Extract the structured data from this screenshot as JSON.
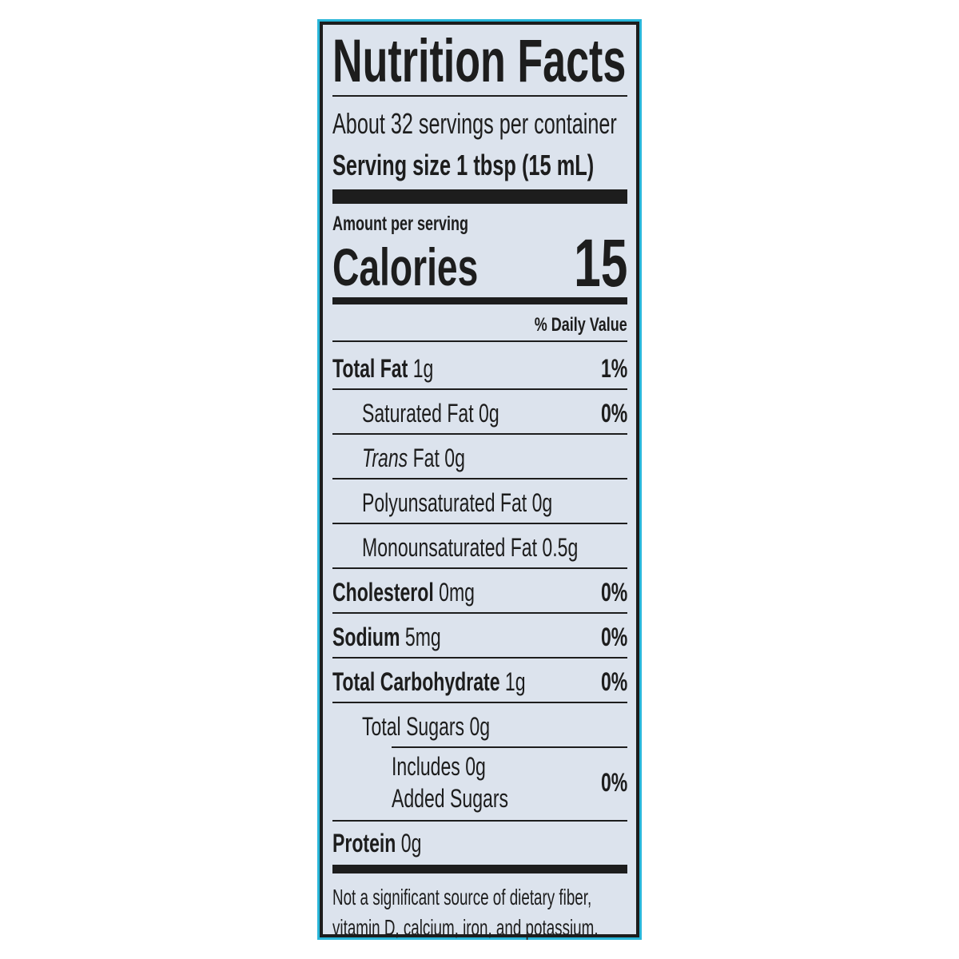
{
  "title": "Nutrition Facts",
  "servings": "About 32 servings per container",
  "serving_size": "Serving size 1 tbsp (15 mL)",
  "amount_per_serving": "Amount per serving",
  "calories_label": "Calories",
  "calories_value": "15",
  "daily_value_header": "% Daily Value",
  "nutrients": [
    {
      "name": "Total Fat",
      "amount": "1g",
      "dv": "1%",
      "indent": 0,
      "bold": true
    },
    {
      "name": "Saturated Fat",
      "amount": "0g",
      "dv": "0%",
      "indent": 1,
      "bold": false
    },
    {
      "name": "Trans",
      "name_suffix": "Fat",
      "amount": "0g",
      "dv": "",
      "indent": 1,
      "bold": false,
      "italic": true
    },
    {
      "name": "Polyunsaturated Fat",
      "amount": "0g",
      "dv": "",
      "indent": 1,
      "bold": false
    },
    {
      "name": "Monounsaturated Fat",
      "amount": "0.5g",
      "dv": "",
      "indent": 1,
      "bold": false
    },
    {
      "name": "Cholesterol",
      "amount": "0mg",
      "dv": "0%",
      "indent": 0,
      "bold": true
    },
    {
      "name": "Sodium",
      "amount": "5mg",
      "dv": "0%",
      "indent": 0,
      "bold": true
    },
    {
      "name": "Total Carbohydrate",
      "amount": "1g",
      "dv": "0%",
      "indent": 0,
      "bold": true
    },
    {
      "name": "Total Sugars",
      "amount": "0g",
      "dv": "",
      "indent": 1,
      "bold": false
    }
  ],
  "added_sugars": {
    "line1": "Includes 0g",
    "line2": "Added Sugars",
    "dv": "0%"
  },
  "protein": {
    "name": "Protein",
    "amount": "0g"
  },
  "footnote": {
    "line1": "Not a significant source of dietary fiber,",
    "line2": "vitamin D, calcium, iron, and potassium."
  },
  "colors": {
    "border": "#29b6d9",
    "background": "#dce3ed",
    "ink": "#1d1d1d"
  }
}
